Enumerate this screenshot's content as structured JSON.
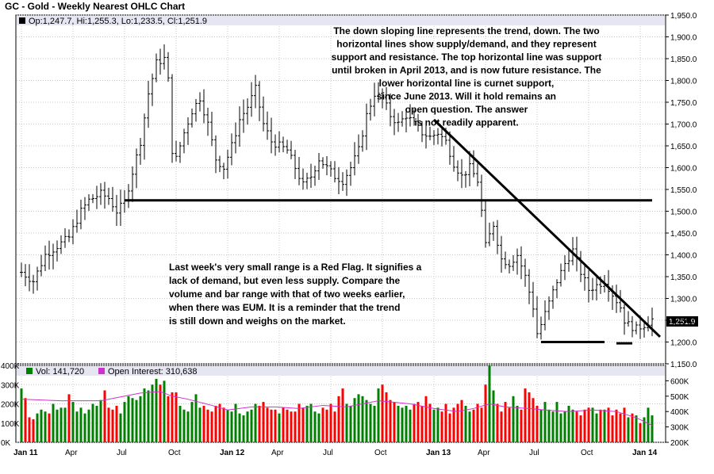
{
  "title": "GC - Gold - Weekly Nearest OHLC Chart",
  "legend_price": "Op:1,247.7, Hi:1,255.3, Lo:1,233.5, Cl:1,251.9",
  "legend_volume": "Vol: 141,720",
  "legend_oi": "Open Interest: 310,638",
  "last_price_tag": "1,251.9",
  "annotation_top": [
    "The down sloping line represents the trend, down.  The two",
    "horizontal lines show supply/demand, and they represent",
    "support and resistance.  The top horizontal line was support",
    "until broken in April 2013, and is now future resistance.  The",
    "lower horizontal line is curnet support,",
    "since June 2013.  Will it hold remains an",
    "open question.  The answer",
    "is not readily apparent."
  ],
  "annotation_bottom": [
    "Last week's very small range is a Red Flag.  It signifies a",
    "lack of demand, but even less supply.  Compare the",
    "volume and bar range with that of two weeks earlier,",
    "when there was EUM.  It is a reminder that the trend",
    "is still down and weighs on the market."
  ],
  "colors": {
    "up_volume": "#008000",
    "down_volume": "#ff0000",
    "oi_line": "#cc33cc",
    "legend_bg": "#e6e6f2"
  },
  "chart_data": {
    "type": "ohlc",
    "price_axis": {
      "ylim": [
        1150,
        1950
      ],
      "ticks": [
        1150,
        1200,
        1250,
        1300,
        1350,
        1400,
        1450,
        1500,
        1550,
        1600,
        1650,
        1700,
        1750,
        1800,
        1850,
        1900,
        1950
      ],
      "tick_labels": [
        "1,150.0",
        "1,200.0",
        "1,250.0",
        "1,300.0",
        "1,350.0",
        "1,400.0",
        "1,450.0",
        "1,500.0",
        "1,550.0",
        "1,600.0",
        "1,650.0",
        "1,700.0",
        "1,750.0",
        "1,800.0",
        "1,850.0",
        "1,900.0",
        "1,950.0"
      ]
    },
    "volume_axis": {
      "ylim": [
        0,
        400
      ],
      "ticks": [
        0,
        100,
        200,
        300,
        400
      ],
      "tick_labels": [
        "0K",
        "100K",
        "200K",
        "300K",
        "400K"
      ]
    },
    "oi_axis": {
      "ylim": [
        200,
        700
      ],
      "ticks": [
        200,
        300,
        400,
        500,
        600
      ],
      "tick_labels": [
        "200K",
        "300K",
        "400K",
        "500K",
        "600K"
      ]
    },
    "x_axis": {
      "n_weeks": 160,
      "ticks": [
        {
          "week": 0,
          "label": "Jan 11",
          "bold": true
        },
        {
          "week": 13,
          "label": "Apr",
          "bold": false
        },
        {
          "week": 26,
          "label": "Jul",
          "bold": false
        },
        {
          "week": 39,
          "label": "Oct",
          "bold": false
        },
        {
          "week": 52,
          "label": "Jan 12",
          "bold": true
        },
        {
          "week": 65,
          "label": "Apr",
          "bold": false
        },
        {
          "week": 78,
          "label": "Jul",
          "bold": false
        },
        {
          "week": 91,
          "label": "Oct",
          "bold": false
        },
        {
          "week": 104,
          "label": "Jan 13",
          "bold": true
        },
        {
          "week": 117,
          "label": "Apr",
          "bold": false
        },
        {
          "week": 130,
          "label": "Jul",
          "bold": false
        },
        {
          "week": 143,
          "label": "Oct",
          "bold": false
        },
        {
          "week": 156,
          "label": "Jan 14",
          "bold": true
        }
      ]
    },
    "close_path": [
      [
        0,
        1360
      ],
      [
        3,
        1340
      ],
      [
        6,
        1400
      ],
      [
        9,
        1420
      ],
      [
        12,
        1440
      ],
      [
        15,
        1500
      ],
      [
        17,
        1525
      ],
      [
        20,
        1540
      ],
      [
        22,
        1530
      ],
      [
        24,
        1500
      ],
      [
        26,
        1520
      ],
      [
        28,
        1590
      ],
      [
        30,
        1660
      ],
      [
        32,
        1770
      ],
      [
        34,
        1840
      ],
      [
        36,
        1850
      ],
      [
        37,
        1800
      ],
      [
        38,
        1640
      ],
      [
        39,
        1620
      ],
      [
        41,
        1680
      ],
      [
        43,
        1730
      ],
      [
        45,
        1760
      ],
      [
        47,
        1700
      ],
      [
        49,
        1620
      ],
      [
        51,
        1600
      ],
      [
        53,
        1650
      ],
      [
        55,
        1710
      ],
      [
        57,
        1740
      ],
      [
        59,
        1780
      ],
      [
        61,
        1700
      ],
      [
        63,
        1660
      ],
      [
        65,
        1650
      ],
      [
        67,
        1640
      ],
      [
        69,
        1600
      ],
      [
        71,
        1560
      ],
      [
        73,
        1580
      ],
      [
        75,
        1620
      ],
      [
        77,
        1600
      ],
      [
        79,
        1580
      ],
      [
        81,
        1570
      ],
      [
        83,
        1600
      ],
      [
        85,
        1640
      ],
      [
        87,
        1720
      ],
      [
        89,
        1770
      ],
      [
        91,
        1760
      ],
      [
        93,
        1720
      ],
      [
        95,
        1700
      ],
      [
        97,
        1720
      ],
      [
        99,
        1700
      ],
      [
        101,
        1680
      ],
      [
        103,
        1670
      ],
      [
        105,
        1680
      ],
      [
        107,
        1660
      ],
      [
        109,
        1610
      ],
      [
        111,
        1580
      ],
      [
        113,
        1600
      ],
      [
        115,
        1570
      ],
      [
        116,
        1500
      ],
      [
        117,
        1420
      ],
      [
        119,
        1470
      ],
      [
        121,
        1390
      ],
      [
        123,
        1380
      ],
      [
        125,
        1400
      ],
      [
        127,
        1350
      ],
      [
        129,
        1280
      ],
      [
        130,
        1220
      ],
      [
        131,
        1240
      ],
      [
        133,
        1290
      ],
      [
        135,
        1340
      ],
      [
        137,
        1380
      ],
      [
        139,
        1410
      ],
      [
        141,
        1360
      ],
      [
        143,
        1320
      ],
      [
        145,
        1330
      ],
      [
        147,
        1340
      ],
      [
        149,
        1310
      ],
      [
        151,
        1280
      ],
      [
        152,
        1250
      ],
      [
        153,
        1240
      ],
      [
        155,
        1230
      ],
      [
        157,
        1240
      ],
      [
        159,
        1252
      ]
    ],
    "volume_values": [
      280,
      230,
      130,
      120,
      150,
      170,
      160,
      150,
      200,
      170,
      180,
      180,
      250,
      210,
      160,
      180,
      150,
      170,
      200,
      190,
      220,
      270,
      180,
      170,
      190,
      150,
      210,
      240,
      230,
      220,
      240,
      280,
      270,
      300,
      330,
      300,
      320,
      240,
      260,
      260,
      190,
      170,
      160,
      210,
      250,
      180,
      190,
      170,
      160,
      190,
      200,
      180,
      170,
      160,
      200,
      150,
      140,
      160,
      170,
      200,
      190,
      210,
      180,
      170,
      170,
      150,
      180,
      170,
      160,
      160,
      200,
      180,
      190,
      200,
      160,
      150,
      180,
      170,
      200,
      160,
      240,
      280,
      200,
      190,
      230,
      250,
      240,
      220,
      200,
      190,
      280,
      300,
      260,
      220,
      210,
      190,
      180,
      190,
      170,
      200,
      210,
      190,
      240,
      200,
      170,
      180,
      160,
      200,
      150,
      180,
      200,
      220,
      190,
      160,
      170,
      200,
      180,
      300,
      400,
      270,
      200,
      160,
      210,
      180,
      240,
      190,
      170,
      280,
      260,
      230,
      190,
      170,
      210,
      170,
      160,
      210,
      150,
      160,
      190,
      170,
      160,
      140,
      170,
      180,
      180,
      150,
      170,
      170,
      180,
      140,
      170,
      150,
      180,
      130,
      150,
      140,
      100,
      130,
      180,
      140
    ],
    "oi_path": [
      [
        0,
        480
      ],
      [
        10,
        470
      ],
      [
        20,
        470
      ],
      [
        26,
        500
      ],
      [
        30,
        520
      ],
      [
        35,
        530
      ],
      [
        38,
        500
      ],
      [
        42,
        480
      ],
      [
        48,
        440
      ],
      [
        52,
        410
      ],
      [
        58,
        430
      ],
      [
        64,
        430
      ],
      [
        70,
        420
      ],
      [
        76,
        440
      ],
      [
        82,
        430
      ],
      [
        86,
        450
      ],
      [
        90,
        470
      ],
      [
        94,
        460
      ],
      [
        98,
        450
      ],
      [
        104,
        420
      ],
      [
        110,
        400
      ],
      [
        114,
        420
      ],
      [
        118,
        450
      ],
      [
        122,
        430
      ],
      [
        128,
        420
      ],
      [
        132,
        410
      ],
      [
        138,
        400
      ],
      [
        144,
        410
      ],
      [
        150,
        400
      ],
      [
        155,
        360
      ],
      [
        159,
        310
      ]
    ],
    "support_lines": [
      {
        "from_week": 26,
        "to_week": 159,
        "price": 1525
      },
      {
        "from_week": 131,
        "to_week": 147,
        "price": 1200
      },
      {
        "from_week": 150,
        "to_week": 154,
        "price": 1197
      }
    ],
    "trend_line": {
      "from": [
        104,
        1710
      ],
      "to": [
        161,
        1212
      ]
    }
  }
}
